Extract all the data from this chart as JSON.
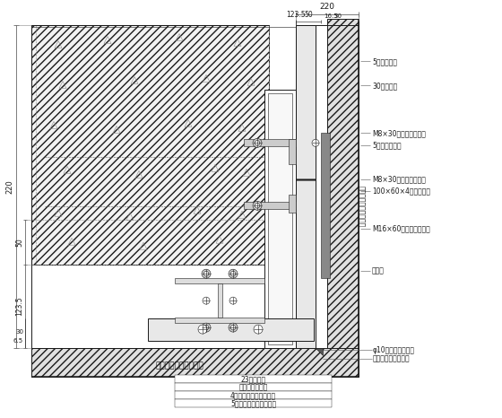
{
  "bg_color": "#ffffff",
  "lc": "#1a1a1a",
  "right_labels": [
    "5号角钢横梁",
    "30厚花岗石",
    "M8×30不锈钢对穿螺栓",
    "5号角钢连接件",
    "M8×30不锈钢对穿螺栓",
    "100×60×4镀锌钢方管",
    "M16×60不锈钢对穿螺栓",
    "预埋件"
  ],
  "bottom_labels": [
    "5厚铝合金专用石材挂件",
    "4厚铝合金专用石材挂件",
    "聚四氟乙烯隔片",
    "23厚花岗石"
  ],
  "side_label_vertical": "石材幕墙横向分格尺寸",
  "bottom_center_label": "石材幕墙横向分格尺寸",
  "corner_label1": "φ10聚乙烯发泡垫杆",
  "corner_label2": "石材专用密封填缝胶"
}
